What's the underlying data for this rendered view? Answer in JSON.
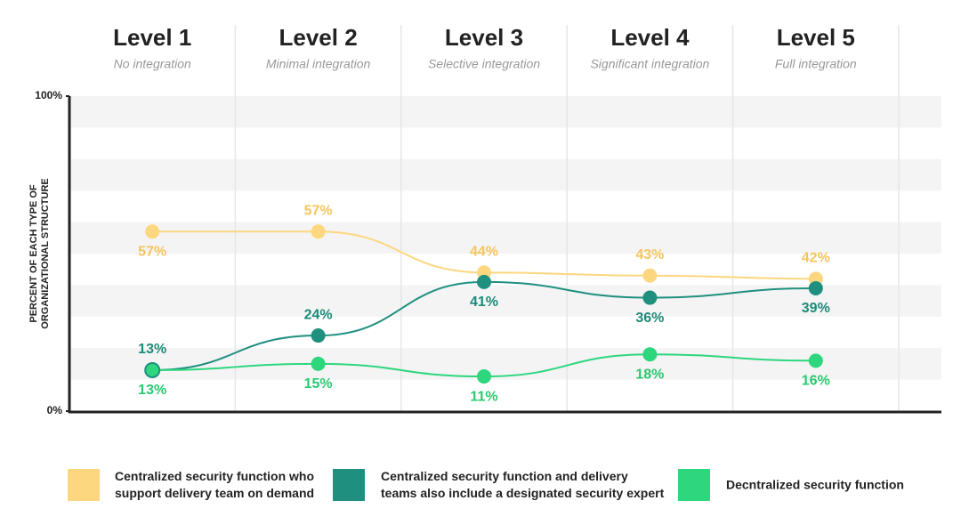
{
  "chart_data": {
    "type": "line",
    "categories": [
      "Level 1",
      "Level 2",
      "Level 3",
      "Level 4",
      "Level 5"
    ],
    "subtitles": [
      "No integration",
      "Minimal integration",
      "Selective integration",
      "Significant integration",
      "Full integration"
    ],
    "ylabel": [
      "PERCENT OF EACH TYPE OF",
      "ORGANIZATIONAL STRUCTURE"
    ],
    "ylim": [
      0,
      100
    ],
    "yticks": [
      {
        "value": 0,
        "label": "0%"
      },
      {
        "value": 100,
        "label": "100%"
      }
    ],
    "series": [
      {
        "name": "Centralized security function who support delivery team on demand",
        "color": "#fcd77f",
        "label_color": "#f6c55e",
        "values": [
          57,
          57,
          44,
          43,
          42
        ],
        "value_labels": [
          "57%",
          "57%",
          "44%",
          "43%",
          "42%"
        ]
      },
      {
        "name": "Centralized security function and  delivery teams also include a designated security expert",
        "color": "#1f9080",
        "label_color": "#1d8a78",
        "values": [
          13,
          24,
          41,
          36,
          39
        ],
        "value_labels": [
          "13%",
          "24%",
          "41%",
          "36%",
          "39%"
        ]
      },
      {
        "name": "Decntralized security function",
        "color": "#2ed67e",
        "label_color": "#28c96f",
        "values": [
          13,
          15,
          11,
          18,
          16
        ],
        "value_labels": [
          "13%",
          "15%",
          "11%",
          "18%",
          "16%"
        ]
      }
    ]
  }
}
